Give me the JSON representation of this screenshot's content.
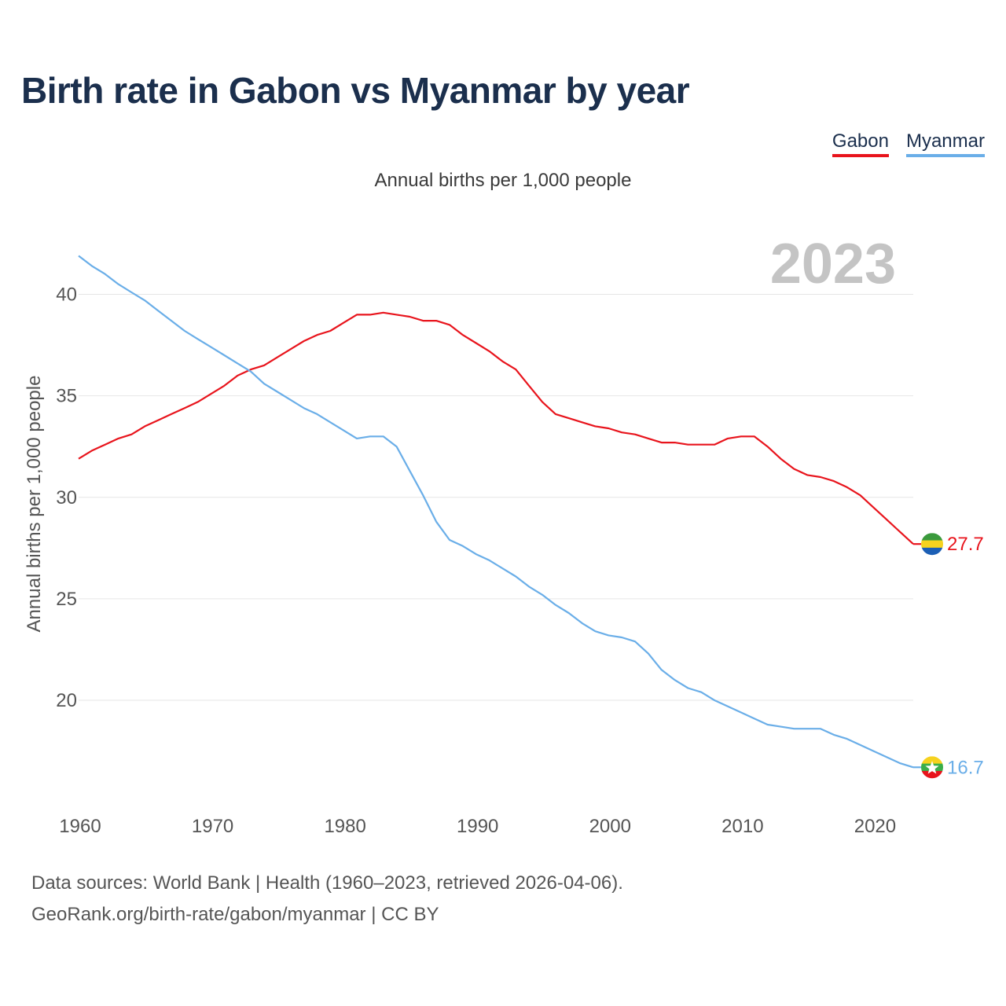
{
  "header": {
    "title": "Birth rate in Gabon vs Myanmar by year",
    "subtitle": "Annual births per 1,000 people"
  },
  "legend": [
    {
      "label": "Gabon",
      "color": "#e8141c"
    },
    {
      "label": "Myanmar",
      "color": "#6aaee8"
    }
  ],
  "footer": {
    "line1": "Data sources: World Bank | Health (1960–2023, retrieved 2026-04-06).",
    "line2": "GeoRank.org/birth-rate/gabon/myanmar | CC BY"
  },
  "chart_data": {
    "type": "line",
    "title": "Birth rate in Gabon vs Myanmar by year",
    "ylabel": "Annual births per 1,000 people",
    "xlabel": "",
    "year_label": "2023",
    "xlim": [
      1960,
      2023
    ],
    "ylim": [
      15.2,
      42.5
    ],
    "x_ticks": [
      1960,
      1970,
      1980,
      1990,
      2000,
      2010,
      2020
    ],
    "y_ticks": [
      20,
      25,
      30,
      35,
      40
    ],
    "grid": true,
    "x": [
      1960,
      1961,
      1962,
      1963,
      1964,
      1965,
      1966,
      1967,
      1968,
      1969,
      1970,
      1971,
      1972,
      1973,
      1974,
      1975,
      1976,
      1977,
      1978,
      1979,
      1980,
      1981,
      1982,
      1983,
      1984,
      1985,
      1986,
      1987,
      1988,
      1989,
      1990,
      1991,
      1992,
      1993,
      1994,
      1995,
      1996,
      1997,
      1998,
      1999,
      2000,
      2001,
      2002,
      2003,
      2004,
      2005,
      2006,
      2007,
      2008,
      2009,
      2010,
      2011,
      2012,
      2013,
      2014,
      2015,
      2016,
      2017,
      2018,
      2019,
      2020,
      2021,
      2022,
      2023
    ],
    "series": [
      {
        "name": "Gabon",
        "color": "#e8141c",
        "end_label": "27.7",
        "flag": "gabon",
        "values": [
          31.9,
          32.3,
          32.6,
          32.9,
          33.1,
          33.5,
          33.8,
          34.1,
          34.4,
          34.7,
          35.1,
          35.5,
          36.0,
          36.3,
          36.5,
          36.9,
          37.3,
          37.7,
          38.0,
          38.2,
          38.6,
          39.0,
          39.0,
          39.1,
          39.0,
          38.9,
          38.7,
          38.7,
          38.5,
          38.0,
          37.6,
          37.2,
          36.7,
          36.3,
          35.5,
          34.7,
          34.1,
          33.9,
          33.7,
          33.5,
          33.4,
          33.2,
          33.1,
          32.9,
          32.7,
          32.7,
          32.6,
          32.6,
          32.6,
          32.9,
          33.0,
          33.0,
          32.5,
          31.9,
          31.4,
          31.1,
          31.0,
          30.8,
          30.5,
          30.1,
          29.5,
          28.9,
          28.3,
          27.7
        ]
      },
      {
        "name": "Myanmar",
        "color": "#6aaee8",
        "end_label": "16.7",
        "flag": "myanmar",
        "values": [
          41.9,
          41.4,
          41.0,
          40.5,
          40.1,
          39.7,
          39.2,
          38.7,
          38.2,
          37.8,
          37.4,
          37.0,
          36.6,
          36.2,
          35.6,
          35.2,
          34.8,
          34.4,
          34.1,
          33.7,
          33.3,
          32.9,
          33.0,
          33.0,
          32.5,
          31.3,
          30.1,
          28.8,
          27.9,
          27.6,
          27.2,
          26.9,
          26.5,
          26.1,
          25.6,
          25.2,
          24.7,
          24.3,
          23.8,
          23.4,
          23.2,
          23.1,
          22.9,
          22.3,
          21.5,
          21.0,
          20.6,
          20.4,
          20.0,
          19.7,
          19.4,
          19.1,
          18.8,
          18.7,
          18.6,
          18.6,
          18.6,
          18.3,
          18.1,
          17.8,
          17.5,
          17.2,
          16.9,
          16.7
        ]
      }
    ]
  }
}
